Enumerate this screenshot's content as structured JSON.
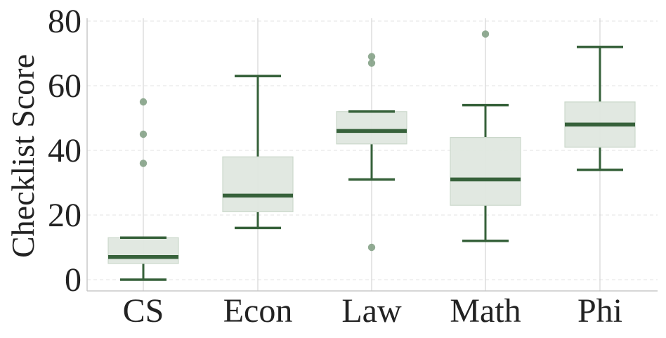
{
  "chart_data": {
    "type": "box",
    "title": "",
    "xlabel": "",
    "ylabel": "Checklist Score",
    "ylim": [
      -3,
      80
    ],
    "yticks": [
      0,
      20,
      40,
      60,
      80
    ],
    "grid": "horizontal dashed and vertical",
    "categories": [
      "CS",
      "Econ",
      "Law",
      "Math",
      "Phi"
    ],
    "boxes": [
      {
        "category": "CS",
        "whisker_low": 0,
        "q1": 5,
        "median": 7,
        "q3": 13,
        "whisker_high": 13,
        "outliers": [
          36,
          45,
          55
        ]
      },
      {
        "category": "Econ",
        "whisker_low": 16,
        "q1": 21,
        "median": 26,
        "q3": 38,
        "whisker_high": 63,
        "outliers": []
      },
      {
        "category": "Law",
        "whisker_low": 31,
        "q1": 42,
        "median": 46,
        "q3": 52,
        "whisker_high": 52,
        "outliers": [
          10,
          67,
          69
        ]
      },
      {
        "category": "Math",
        "whisker_low": 12,
        "q1": 23,
        "median": 31,
        "q3": 44,
        "whisker_high": 54,
        "outliers": [
          76
        ]
      },
      {
        "category": "Phi",
        "whisker_low": 34,
        "q1": 41,
        "median": 48,
        "q3": 55,
        "whisker_high": 72,
        "outliers": []
      }
    ],
    "colors": {
      "line": "#36613a",
      "box_fill": "#dfe7df",
      "box_edge": "#cbd8cb",
      "outlier": "#7e9c80",
      "grid": "#d4d4d4",
      "axis": "#c8c8c8"
    }
  }
}
